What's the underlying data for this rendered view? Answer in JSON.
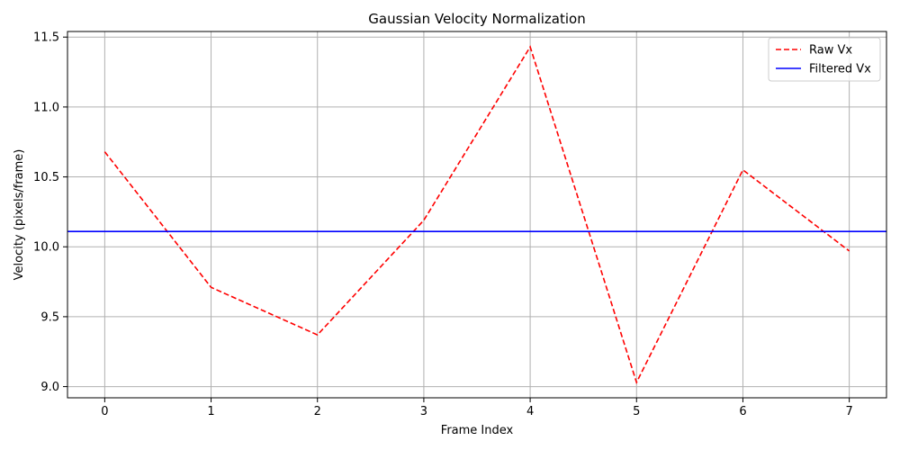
{
  "chart_data": {
    "type": "line",
    "title": "Gaussian Velocity Normalization",
    "xlabel": "Frame Index",
    "ylabel": "Velocity (pixels/frame)",
    "xlim": [
      -0.35,
      7.35
    ],
    "ylim": [
      8.92,
      11.54
    ],
    "x_ticks": [
      0,
      1,
      2,
      3,
      4,
      5,
      6,
      7
    ],
    "y_ticks": [
      9.0,
      9.5,
      10.0,
      10.5,
      11.0,
      11.5
    ],
    "grid": true,
    "legend_position": "top-right",
    "series": [
      {
        "name": "Raw Vx",
        "color": "#ff0000",
        "style": "dashed",
        "x": [
          0,
          1,
          2,
          3,
          4,
          5,
          6,
          7
        ],
        "y": [
          10.68,
          9.71,
          9.37,
          10.19,
          11.43,
          9.03,
          10.55,
          9.97
        ]
      },
      {
        "name": "Filtered Vx",
        "color": "#0000ff",
        "style": "solid",
        "x": [
          -0.35,
          7.35
        ],
        "y": [
          10.11,
          10.11
        ]
      }
    ]
  }
}
